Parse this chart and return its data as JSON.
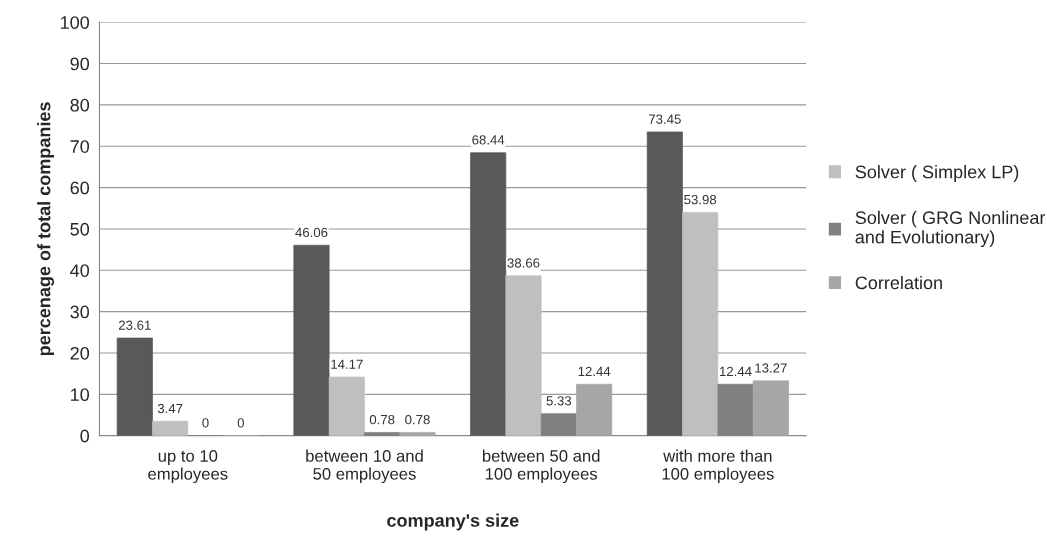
{
  "chart_data": {
    "type": "bar",
    "xlabel": "company's size",
    "ylabel": "percenage of total companies",
    "categories": [
      "up to 10\nemployees",
      "between 10 and\n50 employees",
      "between 50 and\n100 employees",
      "with more than\n100 employees"
    ],
    "series": [
      {
        "color": "#595959",
        "values": [
          23.61,
          46.06,
          68.44,
          73.45
        ]
      },
      {
        "name": "Solver ( Simplex LP)",
        "color": "#bfbfbf",
        "values": [
          3.47,
          14.17,
          38.66,
          53.98
        ]
      },
      {
        "name": "Solver ( GRG Nonlinear\nand Evolutionary)",
        "color": "#808080",
        "values": [
          0,
          0.78,
          5.33,
          12.44
        ]
      },
      {
        "name": "Correlation",
        "color": "#a6a6a6",
        "values": [
          0,
          0.78,
          12.44,
          13.27
        ]
      }
    ],
    "ylim": [
      0,
      100
    ],
    "yticks": [
      0,
      10,
      20,
      30,
      40,
      50,
      60,
      70,
      80,
      90,
      100
    ],
    "grid": "y",
    "legend": "right",
    "data_labels": true
  }
}
